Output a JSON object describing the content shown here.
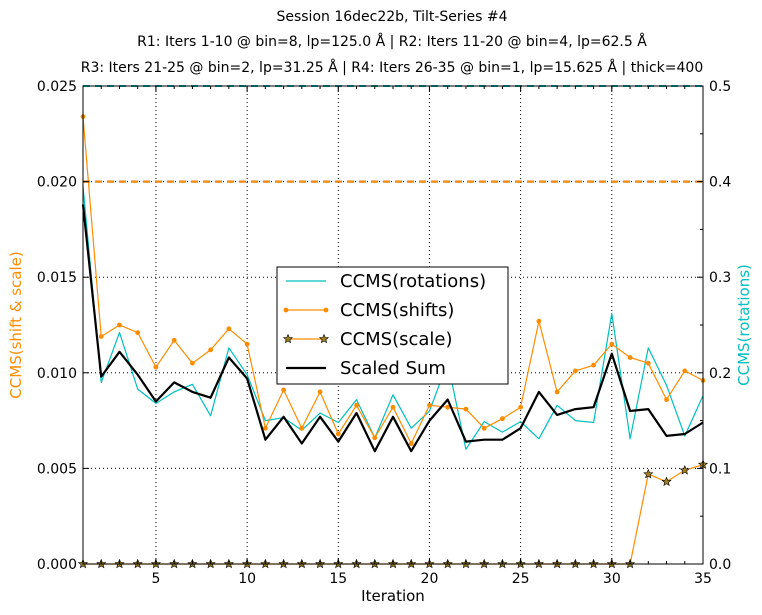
{
  "chart_data": {
    "type": "line",
    "title_lines": [
      "Session 16dec22b, Tilt-Series #4",
      "R1: Iters 1-10 @ bin=8, lp=125.0 Å | R2: Iters 11-20 @ bin=4, lp=62.5 Å",
      "R3: Iters 21-25 @ bin=2, lp=31.25 Å | R4: Iters 26-35 @ bin=1, lp=15.625 Å | thick=400"
    ],
    "xlabel": "Iteration",
    "ylabel_left": "CCMS(shift & scale)",
    "ylabel_right": "CCMS(rotations)",
    "xlim": [
      1,
      35
    ],
    "ylim_left": [
      0.0,
      0.025
    ],
    "ylim_right": [
      0.0,
      0.5
    ],
    "xticks": [
      5,
      10,
      15,
      20,
      25,
      30,
      35
    ],
    "yticks_left": [
      0.0,
      0.005,
      0.01,
      0.015,
      0.02,
      0.025
    ],
    "yticks_left_labels": [
      "0.000",
      "0.005",
      "0.010",
      "0.015",
      "0.020",
      "0.025"
    ],
    "yticks_right": [
      0.0,
      0.1,
      0.2,
      0.3,
      0.4,
      0.5
    ],
    "yticks_right_labels": [
      "0.0",
      "0.1",
      "0.2",
      "0.3",
      "0.4",
      "0.5"
    ],
    "grid": true,
    "legend_position": "center",
    "colors": {
      "rotations": "#00bfbf",
      "shifts": "#ff8c00",
      "scale": "#ff8c00",
      "sum": "#000000",
      "left_axis_label": "#ff8c00",
      "right_axis_label": "#00bfbf"
    },
    "x": [
      1,
      2,
      3,
      4,
      5,
      6,
      7,
      8,
      9,
      10,
      11,
      12,
      13,
      14,
      15,
      16,
      17,
      18,
      19,
      20,
      21,
      22,
      23,
      24,
      25,
      26,
      27,
      28,
      29,
      30,
      31,
      32,
      33,
      34,
      35
    ],
    "series": [
      {
        "name": "CCMS(rotations)",
        "axis": "right",
        "style": "line",
        "values": [
          0.395,
          0.19,
          0.242,
          0.183,
          0.168,
          0.18,
          0.188,
          0.155,
          0.226,
          0.198,
          0.15,
          0.153,
          0.14,
          0.158,
          0.148,
          0.172,
          0.132,
          0.177,
          0.142,
          0.16,
          0.211,
          0.12,
          0.149,
          0.138,
          0.149,
          0.131,
          0.166,
          0.15,
          0.148,
          0.262,
          0.131,
          0.226,
          0.187,
          0.134,
          0.176
        ]
      },
      {
        "name": "CCMS(shifts)",
        "axis": "left",
        "style": "line-dot",
        "values": [
          0.0234,
          0.0119,
          0.0125,
          0.0121,
          0.0103,
          0.0117,
          0.0105,
          0.0112,
          0.0123,
          0.0115,
          0.0071,
          0.0091,
          0.0071,
          0.009,
          0.0068,
          0.0083,
          0.0066,
          0.0082,
          0.0063,
          0.0083,
          0.0082,
          0.0081,
          0.0071,
          0.0076,
          0.0082,
          0.0127,
          0.009,
          0.0101,
          0.0104,
          0.0115,
          0.0108,
          0.0105,
          0.0086,
          0.0101,
          0.0096
        ]
      },
      {
        "name": "CCMS(scale)",
        "axis": "left",
        "style": "line-star",
        "values": [
          0,
          0,
          0,
          0,
          0,
          0,
          0,
          0,
          0,
          0,
          0,
          0,
          0,
          0,
          0,
          0,
          0,
          0,
          0,
          0,
          0,
          0,
          0,
          0,
          0,
          0,
          0,
          0,
          0,
          0,
          0,
          0.0047,
          0.0043,
          0.0049,
          0.0052
        ]
      },
      {
        "name": "Scaled Sum",
        "axis": "left",
        "style": "line-thick",
        "values": [
          0.0188,
          0.0098,
          0.0111,
          0.0099,
          0.0085,
          0.0095,
          0.009,
          0.0087,
          0.0108,
          0.0097,
          0.0065,
          0.0077,
          0.0063,
          0.0077,
          0.0064,
          0.0079,
          0.0059,
          0.0077,
          0.0059,
          0.0075,
          0.0086,
          0.0064,
          0.0065,
          0.0065,
          0.0071,
          0.009,
          0.0078,
          0.0081,
          0.0082,
          0.011,
          0.008,
          0.0081,
          0.0067,
          0.0068,
          0.0074
        ]
      }
    ],
    "reference_lines": [
      {
        "axis": "left",
        "y": 0.02,
        "color": "#000000",
        "dash": true
      },
      {
        "axis": "left",
        "y": 0.02,
        "color": "#ff8c00",
        "dash": true
      },
      {
        "axis": "left",
        "y": 0.025,
        "color": "#00bfbf",
        "dash": true
      }
    ]
  }
}
